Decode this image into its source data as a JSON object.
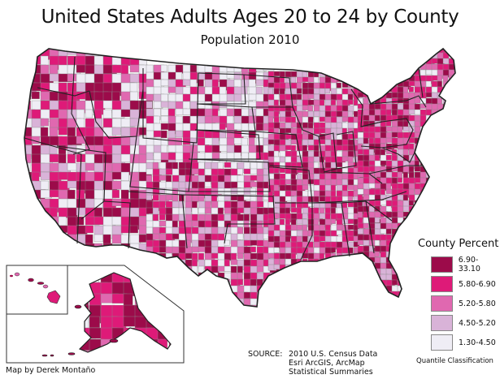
{
  "header": {
    "title": "United States Adults Ages 20 to 24 by County",
    "subtitle": "Population 2010"
  },
  "legend": {
    "title": "County Percent",
    "classes": [
      {
        "range": "6.90-33.10",
        "color": "#9c0b4a"
      },
      {
        "range": "5.80-6.90",
        "color": "#de1a78"
      },
      {
        "range": "5.20-5.80",
        "color": "#e068b0"
      },
      {
        "range": "4.50-5.20",
        "color": "#d9b3d8"
      },
      {
        "range": "1.30-4.50",
        "color": "#efedf5"
      }
    ],
    "note": "Quantile Classification"
  },
  "source": {
    "label": "SOURCE:",
    "lines": [
      "2010 U.S. Census Data",
      "Esri ArcGIS, ArcMap",
      "Statistical Summaries"
    ]
  },
  "credit": "Map by Derek Montaño",
  "colors": {
    "state_border": "#222222",
    "county_border": "#8a8a8a",
    "inset_frame": "#333333"
  },
  "chart_data": {
    "type": "choropleth",
    "title": "United States Adults Ages 20 to 24 by County",
    "subtitle": "Population 2010",
    "variable": "County Percent (adults ages 20 to 24)",
    "classification": "Quantile",
    "classes": [
      {
        "min": 6.9,
        "max": 33.1,
        "color": "#9c0b4a"
      },
      {
        "min": 5.8,
        "max": 6.9,
        "color": "#de1a78"
      },
      {
        "min": 5.2,
        "max": 5.8,
        "color": "#e068b0"
      },
      {
        "min": 4.5,
        "max": 5.2,
        "color": "#d9b3d8"
      },
      {
        "min": 1.3,
        "max": 4.5,
        "color": "#efedf5"
      }
    ],
    "regions": [
      "Contiguous United States",
      "Alaska (inset)",
      "Hawaii (inset)"
    ],
    "legend_position": "bottom-right"
  }
}
